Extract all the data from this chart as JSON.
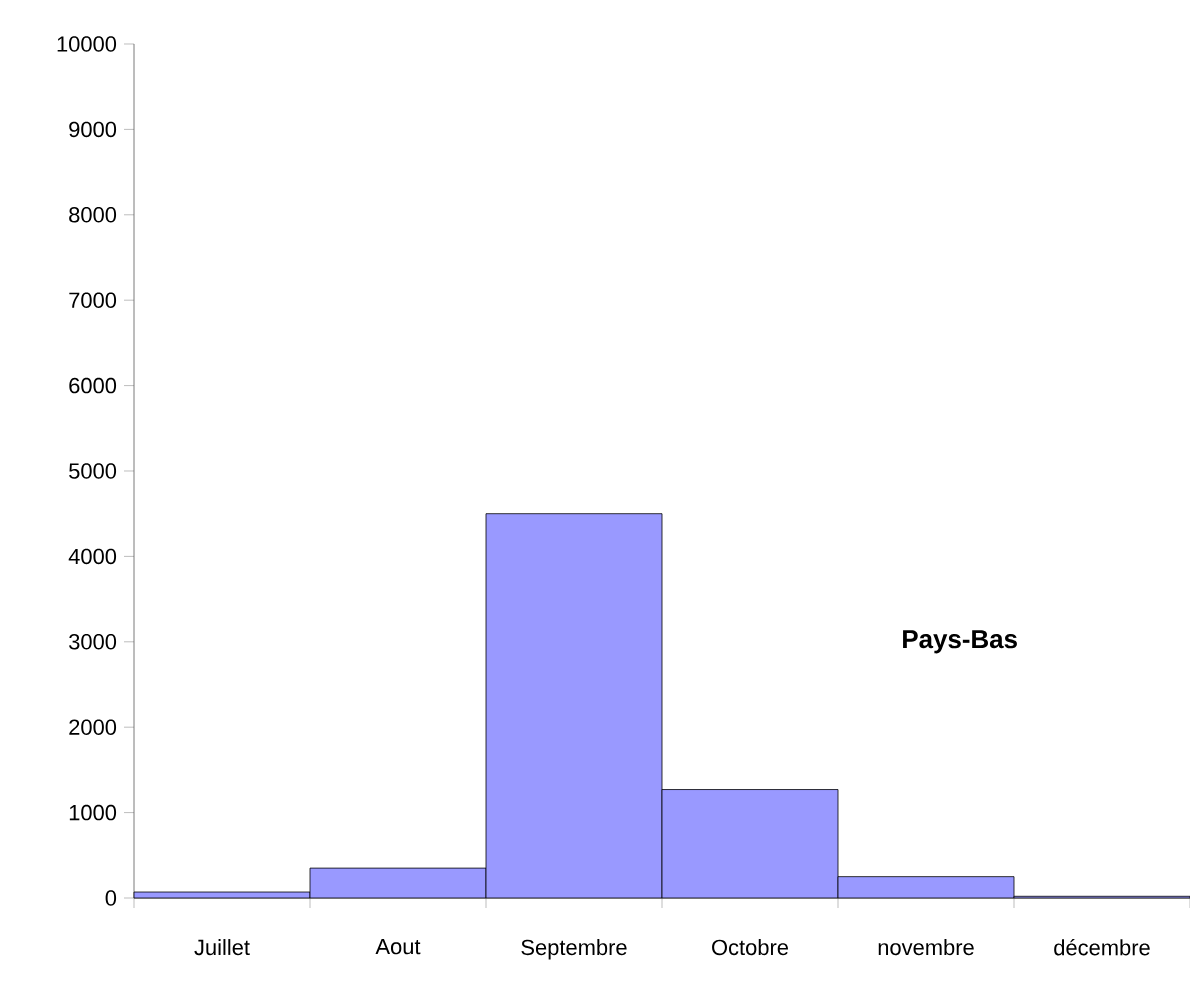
{
  "chart_data": {
    "type": "bar",
    "categories": [
      "Juillet",
      "Aout",
      "Septembre",
      "Octobre",
      "novembre",
      "décembre"
    ],
    "values": [
      70,
      350,
      4500,
      1270,
      250,
      20
    ],
    "color": "#9999ff",
    "ylim": [
      0,
      10000
    ],
    "yticks": [
      0,
      1000,
      2000,
      3000,
      4000,
      5000,
      6000,
      7000,
      8000,
      9000,
      10000
    ],
    "annotations": [
      "Pays-Bas"
    ]
  }
}
